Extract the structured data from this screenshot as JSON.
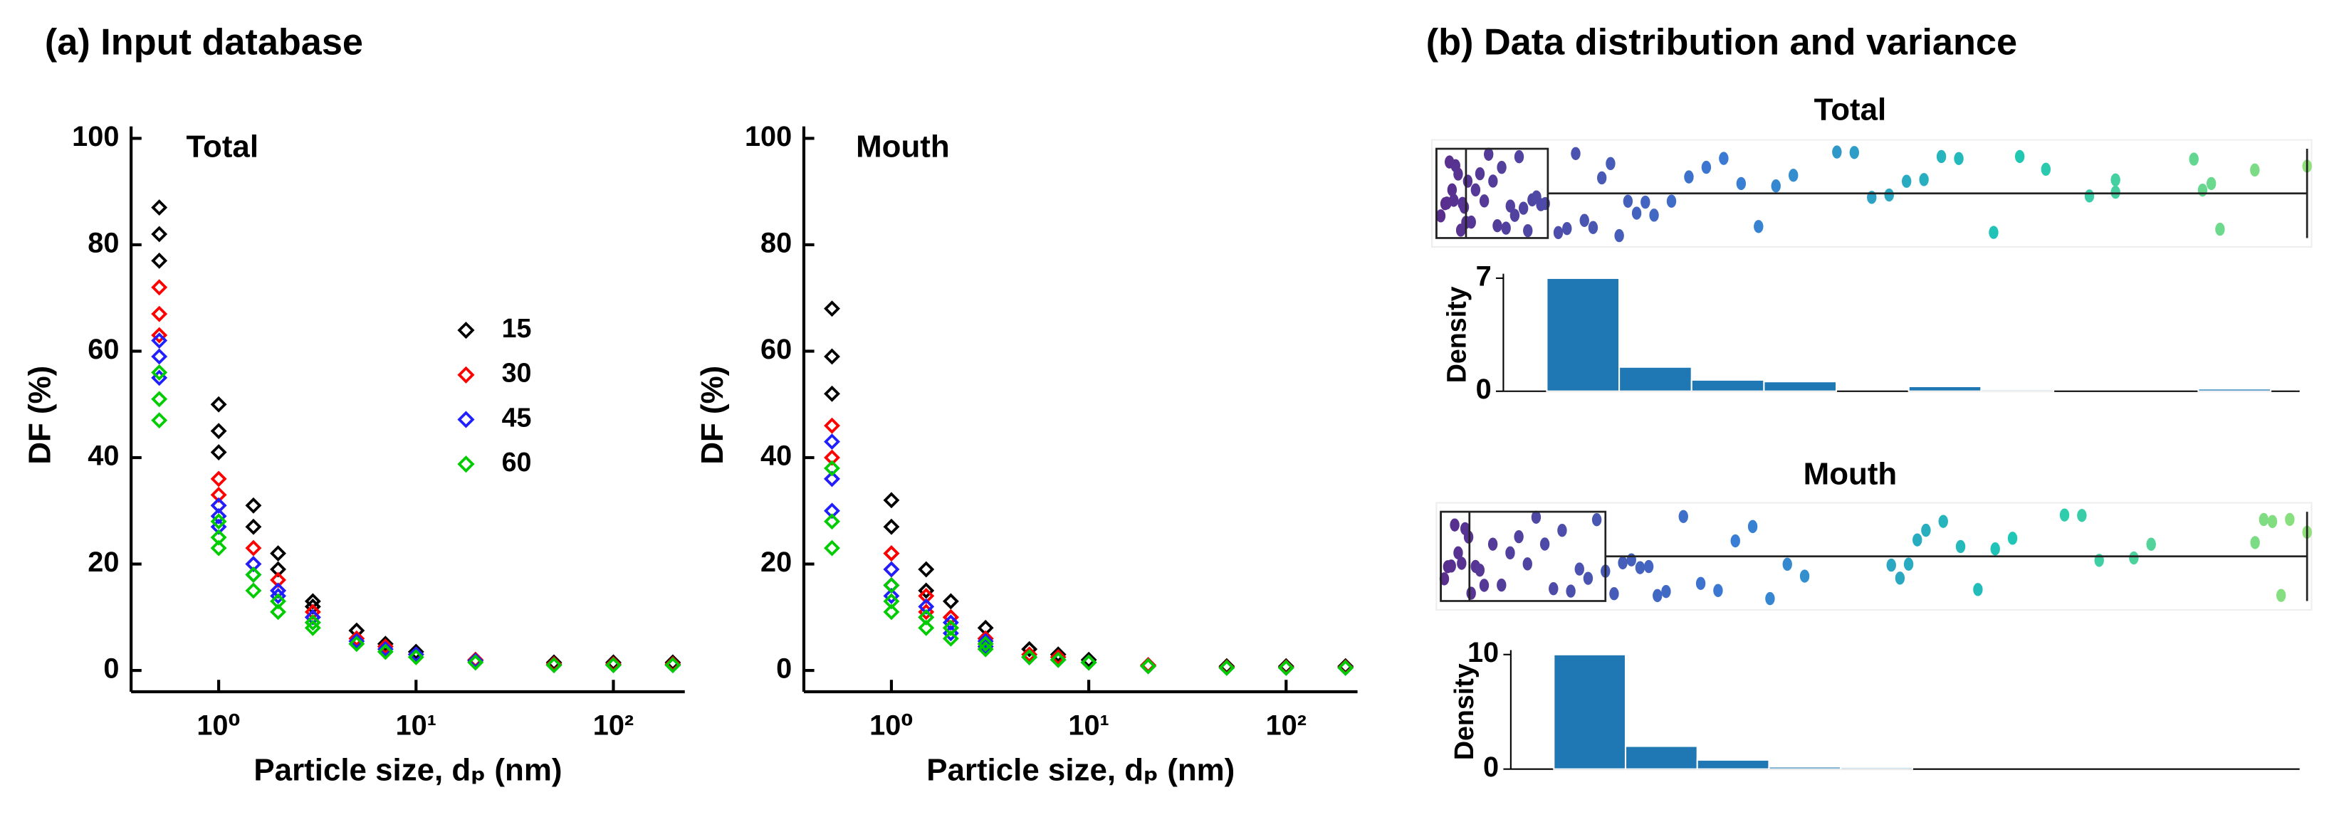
{
  "panels": [
    {
      "title": "(a) Input database"
    },
    {
      "title": "(b) Data distribution and variance"
    }
  ],
  "chart_data": [
    {
      "type": "scatter",
      "title": "Total",
      "xlabel": "Particle size, dₚ (nm)",
      "ylabel": "DF (%)",
      "xscale": "log",
      "xlim": [
        0.36,
        230
      ],
      "ylim": [
        -4,
        100
      ],
      "xticks": [
        {
          "value": 1,
          "label": "10⁰"
        },
        {
          "value": 10,
          "label": "10¹"
        },
        {
          "value": 100,
          "label": "10²"
        }
      ],
      "yticks": [
        0,
        20,
        40,
        60,
        80,
        100
      ],
      "legend": "right",
      "series": [
        {
          "name": "15",
          "color": "#000000",
          "x": [
            0.5,
            0.5,
            0.5,
            1,
            1,
            1,
            1.5,
            1.5,
            2,
            2,
            3,
            3,
            5,
            7,
            10,
            20,
            50,
            100,
            200
          ],
          "y": [
            87,
            82,
            77,
            50,
            45,
            41,
            31,
            27,
            22,
            19,
            13,
            12,
            7.5,
            5,
            3.5,
            2,
            1.5,
            1.5,
            1.5
          ]
        },
        {
          "name": "30",
          "color": "#ff0000",
          "x": [
            0.5,
            0.5,
            0.5,
            1,
            1,
            1,
            1.5,
            1.5,
            2,
            2,
            3,
            3,
            5,
            7,
            10,
            20,
            50,
            100,
            200
          ],
          "y": [
            72,
            67,
            63,
            36,
            33,
            31,
            23,
            20,
            17,
            15,
            11,
            10,
            6,
            4.5,
            3,
            2,
            1.2,
            1.2,
            1.2
          ]
        },
        {
          "name": "45",
          "color": "#2020ff",
          "x": [
            0.5,
            0.5,
            0.5,
            1,
            1,
            1,
            1.5,
            1.5,
            2,
            2,
            3,
            3,
            5,
            7,
            10,
            20,
            50,
            100,
            200
          ],
          "y": [
            62,
            59,
            55,
            31,
            29,
            27,
            20,
            18,
            15,
            14,
            10,
            9,
            5.5,
            4,
            3,
            1.8,
            1,
            1,
            1
          ]
        },
        {
          "name": "60",
          "color": "#00cc00",
          "x": [
            0.5,
            0.5,
            0.5,
            1,
            1,
            1,
            1.5,
            1.5,
            2,
            2,
            3,
            3,
            5,
            7,
            10,
            20,
            50,
            100,
            200
          ],
          "y": [
            56,
            51,
            47,
            28,
            25,
            23,
            18,
            15,
            13,
            11,
            9,
            8,
            5,
            3.5,
            2.5,
            1.5,
            1,
            1,
            1
          ]
        }
      ]
    },
    {
      "type": "scatter",
      "title": "Mouth",
      "xlabel": "Particle size, dₚ (nm)",
      "ylabel": "DF (%)",
      "xscale": "log",
      "xlim": [
        0.36,
        230
      ],
      "ylim": [
        -4,
        100
      ],
      "xticks": [
        {
          "value": 1,
          "label": "10⁰"
        },
        {
          "value": 10,
          "label": "10¹"
        },
        {
          "value": 100,
          "label": "10²"
        }
      ],
      "yticks": [
        0,
        20,
        40,
        60,
        80,
        100
      ],
      "series": [
        {
          "color": "#000000",
          "x": [
            0.5,
            0.5,
            0.5,
            1,
            1,
            1,
            1.5,
            1.5,
            2,
            2,
            3,
            3,
            5,
            7,
            10,
            20,
            50,
            100,
            200
          ],
          "y": [
            68,
            59,
            52,
            32,
            27,
            22,
            19,
            15,
            13,
            10,
            8,
            6,
            4,
            3,
            2,
            1,
            0.8,
            0.8,
            0.8
          ]
        },
        {
          "color": "#ff0000",
          "x": [
            0.5,
            0.5,
            0.5,
            1,
            1,
            1,
            1.5,
            1.5,
            2,
            2,
            3,
            3,
            5,
            7,
            10,
            20,
            50,
            100,
            200
          ],
          "y": [
            46,
            40,
            36,
            22,
            19,
            16,
            14,
            11,
            10,
            8,
            6,
            5,
            3,
            2.5,
            1.5,
            1,
            0.6,
            0.6,
            0.6
          ]
        },
        {
          "color": "#2020ff",
          "x": [
            0.5,
            0.5,
            0.5,
            1,
            1,
            1,
            1.5,
            1.5,
            2,
            2,
            3,
            3,
            5,
            7,
            10,
            20,
            50,
            100,
            200
          ],
          "y": [
            43,
            36,
            30,
            19,
            16,
            14,
            12,
            10,
            9,
            7,
            5.5,
            4.5,
            2.5,
            2,
            1.5,
            0.8,
            0.5,
            0.5,
            0.5
          ]
        },
        {
          "color": "#00cc00",
          "x": [
            0.5,
            0.5,
            0.5,
            1,
            1,
            1,
            1.5,
            1.5,
            2,
            2,
            3,
            3,
            5,
            7,
            10,
            20,
            50,
            100,
            200
          ],
          "y": [
            38,
            28,
            23,
            16,
            13,
            11,
            10,
            8,
            8,
            6,
            5,
            4,
            2.5,
            2,
            1.5,
            0.8,
            0.5,
            0.5,
            0.5
          ]
        }
      ]
    },
    {
      "type": "strip",
      "title": "Total",
      "xlim": [
        0,
        1
      ],
      "colormap": [
        "#5a2d8c",
        "#3a7bd5",
        "#1fc8b5",
        "#8fe07a"
      ],
      "box": {
        "q1": 0,
        "median": 0.034,
        "q3": 0.128,
        "whisker_low": 0,
        "whisker_high": 1
      },
      "values": [
        0.005,
        0.01,
        0.012,
        0.015,
        0.018,
        0.02,
        0.022,
        0.025,
        0.028,
        0.03,
        0.032,
        0.034,
        0.036,
        0.04,
        0.045,
        0.05,
        0.055,
        0.06,
        0.065,
        0.07,
        0.075,
        0.08,
        0.085,
        0.09,
        0.095,
        0.1,
        0.105,
        0.11,
        0.115,
        0.12,
        0.125,
        0.14,
        0.15,
        0.16,
        0.17,
        0.18,
        0.19,
        0.2,
        0.21,
        0.22,
        0.23,
        0.24,
        0.25,
        0.27,
        0.29,
        0.31,
        0.33,
        0.35,
        0.37,
        0.39,
        0.41,
        0.46,
        0.48,
        0.5,
        0.52,
        0.54,
        0.56,
        0.58,
        0.6,
        0.64,
        0.67,
        0.7,
        0.75,
        0.78,
        0.78,
        0.87,
        0.89,
        0.9,
        0.88,
        0.94,
        1.0
      ]
    },
    {
      "type": "histogram",
      "ylabel": "Density",
      "color": "#1f77b4",
      "xlim": [
        -0.06,
        1.04
      ],
      "ylim": [
        0,
        7
      ],
      "yticks": [
        0,
        7
      ],
      "bins": [
        0,
        0.1,
        0.2,
        0.3,
        0.4,
        0.5,
        0.6,
        0.7,
        0.8,
        0.9,
        1.0
      ],
      "values": [
        7,
        1.5,
        0.7,
        0.6,
        0,
        0.3,
        0.1,
        0,
        0,
        0.15
      ]
    },
    {
      "type": "strip",
      "title": "Mouth",
      "xlim": [
        0,
        1
      ],
      "colormap": [
        "#5a2d8c",
        "#3a7bd5",
        "#1fc8b5",
        "#8fe07a"
      ],
      "box": {
        "q1": 0,
        "median": 0.033,
        "q3": 0.19,
        "whisker_low": 0,
        "whisker_high": 1
      },
      "values": [
        0.004,
        0.008,
        0.012,
        0.016,
        0.02,
        0.024,
        0.028,
        0.032,
        0.035,
        0.04,
        0.045,
        0.05,
        0.06,
        0.07,
        0.08,
        0.09,
        0.1,
        0.11,
        0.12,
        0.13,
        0.14,
        0.15,
        0.16,
        0.17,
        0.18,
        0.19,
        0.2,
        0.21,
        0.22,
        0.23,
        0.24,
        0.25,
        0.26,
        0.28,
        0.3,
        0.32,
        0.34,
        0.36,
        0.38,
        0.4,
        0.42,
        0.52,
        0.53,
        0.54,
        0.55,
        0.56,
        0.58,
        0.6,
        0.62,
        0.64,
        0.66,
        0.72,
        0.74,
        0.76,
        0.8,
        0.82,
        0.94,
        0.95,
        0.96,
        0.97,
        0.98,
        1.0
      ]
    },
    {
      "type": "histogram",
      "ylabel": "Density",
      "color": "#1f77b4",
      "xlim": [
        -0.06,
        1.04
      ],
      "ylim": [
        0,
        10
      ],
      "yticks": [
        0,
        10
      ],
      "bins": [
        0,
        0.1,
        0.2,
        0.3,
        0.4,
        0.5,
        0.6,
        0.7,
        0.8,
        0.9,
        1.0
      ],
      "values": [
        10,
        2,
        0.8,
        0.2,
        0.15,
        0,
        0,
        0,
        0,
        0
      ]
    }
  ]
}
